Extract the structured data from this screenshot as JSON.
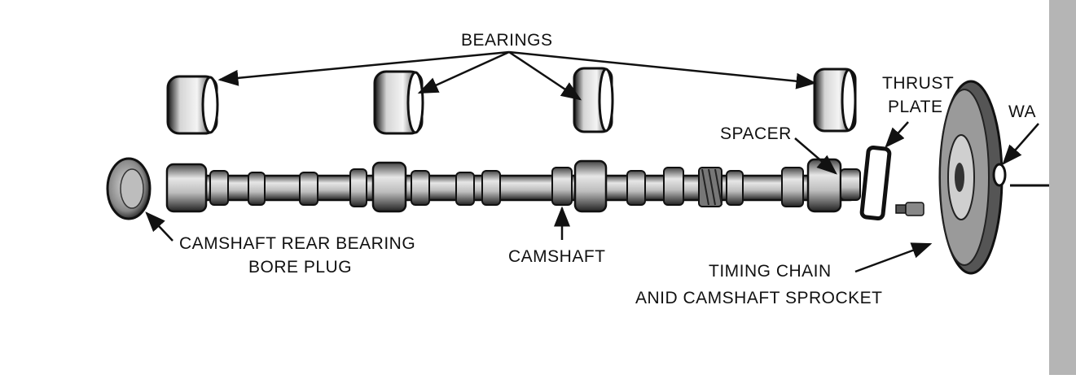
{
  "labels": {
    "bearings": "BEARINGS",
    "thrust_plate_line1": "THRUST",
    "thrust_plate_line2": "PLATE",
    "spacer": "SPACER",
    "washer_partial": "WA",
    "rear_plug_line1": "CAMSHAFT REAR BEARING",
    "rear_plug_line2": "BORE PLUG",
    "camshaft": "CAMSHAFT",
    "sprocket_line1": "TIMING CHAIN",
    "sprocket_line2": "ANID CAMSHAFT SPROCKET"
  },
  "parts": [
    "bearing",
    "bearing",
    "bearing",
    "bearing",
    "rear-bearing-bore-plug",
    "camshaft",
    "spacer",
    "thrust-plate",
    "bolt",
    "camshaft-sprocket",
    "washer"
  ],
  "colors": {
    "ink": "#111111",
    "paper": "#ffffff",
    "gray": "#8a8a8a"
  }
}
